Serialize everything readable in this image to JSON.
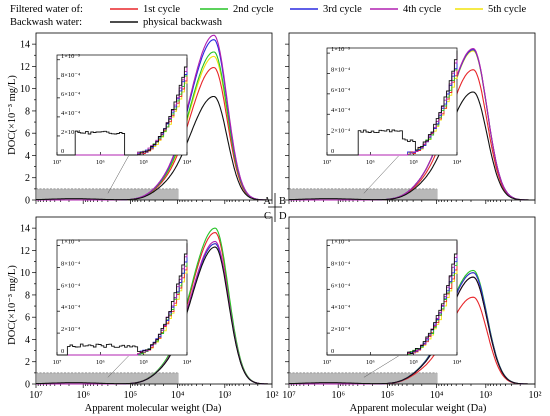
{
  "legend": {
    "filtered_label": "Filtered water of:",
    "backwash_label": "Backwash water:",
    "entries": [
      {
        "name": "1st cycle",
        "color": "#e8262a"
      },
      {
        "name": "2nd cycle",
        "color": "#27c427"
      },
      {
        "name": "3rd cycle",
        "color": "#2a2ae0"
      },
      {
        "name": "4th cycle",
        "color": "#b020b0"
      },
      {
        "name": "5th cycle",
        "color": "#f2e30c"
      },
      {
        "name": "physical backwash",
        "color": "#111111"
      }
    ]
  },
  "center_labels": {
    "a": "A",
    "b": "B",
    "c": "C",
    "d": "D"
  },
  "ylabel": "DOC(×10⁻³ mg/L)",
  "xlabel": "Apparent molecular weight (Da)",
  "chart_data": [
    {
      "type": "line",
      "panel": "A",
      "xscale": "log-reversed",
      "xlim": [
        10000000,
        100
      ],
      "ylim": [
        0,
        15
      ],
      "xticks": [
        "10⁷",
        "10⁶",
        "10⁵",
        "10⁴",
        "10³",
        "10²"
      ],
      "yticks": [
        "0",
        "2",
        "4",
        "6",
        "8",
        "10",
        "12",
        "14"
      ],
      "peak_x": 1700,
      "series": [
        {
          "name": "1st cycle",
          "peak": 11.9
        },
        {
          "name": "2nd cycle",
          "peak": 13.3
        },
        {
          "name": "3rd cycle",
          "peak": 14.4
        },
        {
          "name": "4th cycle",
          "peak": 14.8
        },
        {
          "name": "5th cycle",
          "peak": 12.9
        },
        {
          "name": "physical backwash",
          "peak": 9.3
        }
      ],
      "inset": {
        "ylim": [
          0,
          0.001
        ],
        "yticks": [
          "0",
          "2×10⁻⁴",
          "4×10⁻⁴",
          "6×10⁻⁴",
          "8×10⁻⁴",
          "1×10⁻³"
        ],
        "xticks": [
          "10⁷",
          "10⁶",
          "10⁵",
          "10⁴"
        ]
      }
    },
    {
      "type": "line",
      "panel": "B",
      "xscale": "log-reversed",
      "xlim": [
        10000000,
        100
      ],
      "ylim": [
        0,
        15
      ],
      "peak_x": 1800,
      "series": [
        {
          "name": "1st cycle",
          "peak": 11.7
        },
        {
          "name": "2nd cycle",
          "peak": 13.5
        },
        {
          "name": "3rd cycle",
          "peak": 13.5
        },
        {
          "name": "4th cycle",
          "peak": 13.6
        },
        {
          "name": "5th cycle",
          "peak": 13.4
        },
        {
          "name": "physical backwash",
          "peak": 9.7
        }
      ],
      "inset": {
        "ylim": [
          0,
          0.001
        ],
        "yticks": [
          "0",
          "2×10⁻⁴",
          "4×10⁻⁴",
          "6×10⁻⁴",
          "8×10⁻⁴",
          "1×10⁻³"
        ],
        "xticks": [
          "10⁷",
          "10⁶",
          "10⁵",
          "10⁴"
        ]
      }
    },
    {
      "type": "line",
      "panel": "C",
      "xscale": "log-reversed",
      "xlim": [
        10000000,
        100
      ],
      "ylim": [
        0,
        15
      ],
      "peak_x": 1600,
      "series": [
        {
          "name": "1st cycle",
          "peak": 13.6
        },
        {
          "name": "2nd cycle",
          "peak": 14.0
        },
        {
          "name": "3rd cycle",
          "peak": 12.6
        },
        {
          "name": "4th cycle",
          "peak": 12.8
        },
        {
          "name": "5th cycle",
          "peak": 12.6
        },
        {
          "name": "physical backwash",
          "peak": 12.3
        }
      ],
      "inset": {
        "ylim": [
          0,
          0.001
        ],
        "yticks": [
          "0",
          "2×10⁻⁴",
          "4×10⁻⁴",
          "6×10⁻⁴",
          "8×10⁻⁴",
          "1×10⁻³"
        ],
        "xticks": [
          "10⁷",
          "10⁶",
          "10⁵",
          "10⁴"
        ]
      }
    },
    {
      "type": "line",
      "panel": "D",
      "xscale": "log-reversed",
      "xlim": [
        10000000,
        100
      ],
      "ylim": [
        0,
        15
      ],
      "peak_x": 1800,
      "series": [
        {
          "name": "1st cycle",
          "peak": 7.8
        },
        {
          "name": "2nd cycle",
          "peak": 10.2
        },
        {
          "name": "3rd cycle",
          "peak": 10.0
        },
        {
          "name": "4th cycle",
          "peak": 9.6
        },
        {
          "name": "5th cycle",
          "peak": 10.0
        },
        {
          "name": "physical backwash",
          "peak": 9.6
        }
      ],
      "inset": {
        "ylim": [
          0,
          0.001
        ],
        "yticks": [
          "0",
          "2×10⁻⁴",
          "4×10⁻⁴",
          "6×10⁻⁴",
          "8×10⁻⁴",
          "1×10⁻³"
        ],
        "xticks": [
          "10⁷",
          "10⁶",
          "10⁵",
          "10⁴"
        ]
      }
    }
  ]
}
